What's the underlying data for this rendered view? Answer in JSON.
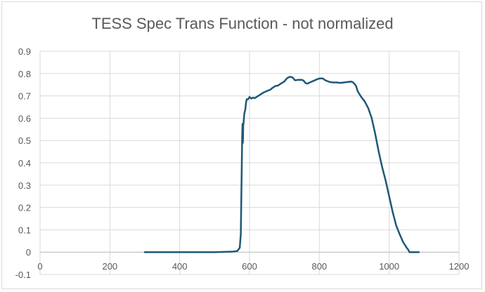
{
  "chart_data": {
    "type": "line",
    "title": "TESS Spec Trans Function - not normalized",
    "xlabel": "",
    "ylabel": "",
    "xlim": [
      0,
      1200
    ],
    "ylim": [
      -0.1,
      0.9
    ],
    "x_ticks": [
      0,
      200,
      400,
      600,
      800,
      1000,
      1200
    ],
    "y_ticks": [
      -0.1,
      0,
      0.1,
      0.2,
      0.3,
      0.4,
      0.5,
      0.6,
      0.7,
      0.8,
      0.9
    ],
    "grid": true,
    "legend": "none",
    "series": [
      {
        "color": "#1f5878",
        "points": [
          [
            300,
            0
          ],
          [
            400,
            0
          ],
          [
            500,
            0
          ],
          [
            550,
            0.002
          ],
          [
            565,
            0.005
          ],
          [
            572,
            0.02
          ],
          [
            575,
            0.08
          ],
          [
            577,
            0.3
          ],
          [
            579,
            0.52
          ],
          [
            580,
            0.575
          ],
          [
            581,
            0.49
          ],
          [
            582,
            0.57
          ],
          [
            583,
            0.58
          ],
          [
            585,
            0.62
          ],
          [
            588,
            0.64
          ],
          [
            590,
            0.67
          ],
          [
            592,
            0.685
          ],
          [
            596,
            0.685
          ],
          [
            600,
            0.695
          ],
          [
            605,
            0.688
          ],
          [
            610,
            0.692
          ],
          [
            615,
            0.69
          ],
          [
            620,
            0.695
          ],
          [
            630,
            0.705
          ],
          [
            640,
            0.715
          ],
          [
            650,
            0.722
          ],
          [
            660,
            0.728
          ],
          [
            665,
            0.735
          ],
          [
            670,
            0.74
          ],
          [
            675,
            0.745
          ],
          [
            680,
            0.745
          ],
          [
            690,
            0.755
          ],
          [
            700,
            0.765
          ],
          [
            705,
            0.775
          ],
          [
            710,
            0.782
          ],
          [
            715,
            0.785
          ],
          [
            720,
            0.785
          ],
          [
            725,
            0.78
          ],
          [
            730,
            0.77
          ],
          [
            740,
            0.772
          ],
          [
            750,
            0.772
          ],
          [
            755,
            0.768
          ],
          [
            760,
            0.758
          ],
          [
            765,
            0.755
          ],
          [
            770,
            0.758
          ],
          [
            775,
            0.762
          ],
          [
            780,
            0.765
          ],
          [
            790,
            0.772
          ],
          [
            800,
            0.778
          ],
          [
            810,
            0.778
          ],
          [
            815,
            0.772
          ],
          [
            820,
            0.768
          ],
          [
            830,
            0.762
          ],
          [
            840,
            0.76
          ],
          [
            850,
            0.76
          ],
          [
            860,
            0.758
          ],
          [
            870,
            0.76
          ],
          [
            880,
            0.762
          ],
          [
            890,
            0.764
          ],
          [
            895,
            0.762
          ],
          [
            900,
            0.755
          ],
          [
            905,
            0.745
          ],
          [
            910,
            0.72
          ],
          [
            920,
            0.695
          ],
          [
            930,
            0.675
          ],
          [
            940,
            0.645
          ],
          [
            950,
            0.6
          ],
          [
            960,
            0.53
          ],
          [
            970,
            0.45
          ],
          [
            980,
            0.38
          ],
          [
            990,
            0.32
          ],
          [
            1000,
            0.25
          ],
          [
            1010,
            0.18
          ],
          [
            1020,
            0.12
          ],
          [
            1030,
            0.08
          ],
          [
            1040,
            0.045
          ],
          [
            1050,
            0.02
          ],
          [
            1055,
            0.01
          ],
          [
            1058,
            0.0
          ],
          [
            1062,
            0.0
          ],
          [
            1085,
            0.0
          ]
        ]
      }
    ]
  }
}
